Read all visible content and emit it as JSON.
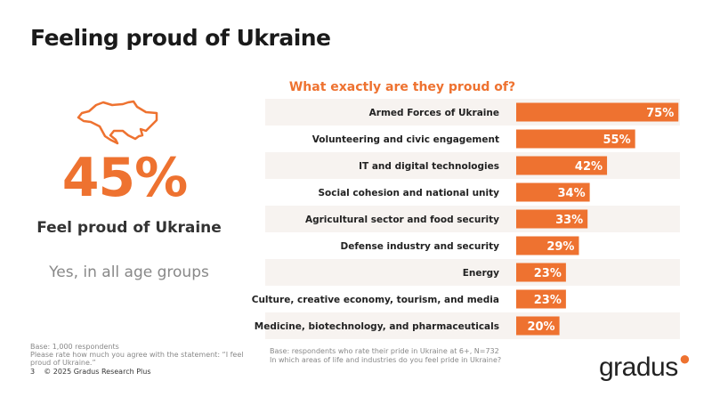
{
  "title": "Feeling proud of Ukraine",
  "highlight": {
    "value": "45%",
    "label": "Feel proud of Ukraine",
    "sub": "Yes, in all age groups",
    "icon": "ukraine-map-outline-icon"
  },
  "left_note": [
    "Base: 1,000 respondents",
    "Please rate how much you agree with the statement: “I feel proud of Ukraine.”"
  ],
  "right_note": [
    "Base: respondents who rate their pride in Ukraine at 6+, N=732",
    "In which areas of life and industries do you feel pride in Ukraine?"
  ],
  "footer": {
    "page": "3",
    "copyright": "© 2025 Gradus Research Plus"
  },
  "logo": "gradus",
  "colors": {
    "accent": "#ee7230",
    "row_band": "#f7f3f0"
  },
  "chart_data": {
    "type": "bar",
    "orientation": "horizontal",
    "title": "What exactly are they proud of?",
    "categories": [
      "Armed Forces of Ukraine",
      "Volunteering and civic engagement",
      "IT and digital technologies",
      "Social cohesion and national unity",
      "Agricultural sector and food security",
      "Defense industry and security",
      "Energy",
      "Culture, creative economy, tourism, and media",
      "Medicine, biotechnology, and pharmaceuticals"
    ],
    "values": [
      75,
      55,
      42,
      34,
      33,
      29,
      23,
      23,
      20
    ],
    "labels": [
      "75%",
      "55%",
      "42%",
      "34%",
      "33%",
      "29%",
      "23%",
      "23%",
      "20%"
    ],
    "xlim": [
      0,
      100
    ],
    "grid": false,
    "unit": "%"
  }
}
